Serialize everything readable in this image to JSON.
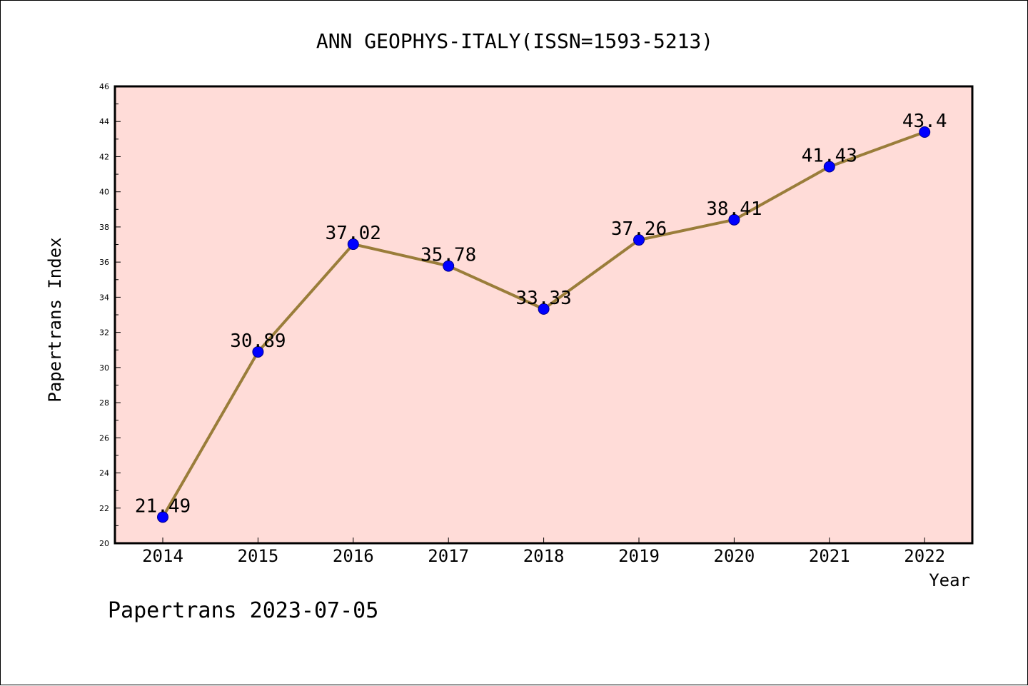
{
  "chart_data": {
    "type": "line",
    "title": "ANN GEOPHYS-ITALY(ISSN=1593-5213)",
    "xlabel": "Year",
    "ylabel": "Papertrans Index",
    "categories": [
      "2014",
      "2015",
      "2016",
      "2017",
      "2018",
      "2019",
      "2020",
      "2021",
      "2022"
    ],
    "series": [
      {
        "values": [
          21.49,
          30.89,
          37.02,
          35.78,
          33.33,
          37.26,
          38.41,
          41.43,
          43.4
        ],
        "labels": [
          "21.49",
          "30.89",
          "37.02",
          "35.78",
          "33.33",
          "37.26",
          "38.41",
          "41.43",
          "43.4"
        ],
        "line_color": "#9a7d3a",
        "marker_color": "#0000ff"
      }
    ],
    "ylim": [
      20,
      46
    ],
    "yticks": [
      "20",
      "22",
      "24",
      "26",
      "28",
      "30",
      "32",
      "34",
      "36",
      "38",
      "40",
      "42",
      "44",
      "46"
    ],
    "grid": false,
    "plot_background": "#ffdcd8"
  },
  "footer": "Papertrans 2023-07-05"
}
